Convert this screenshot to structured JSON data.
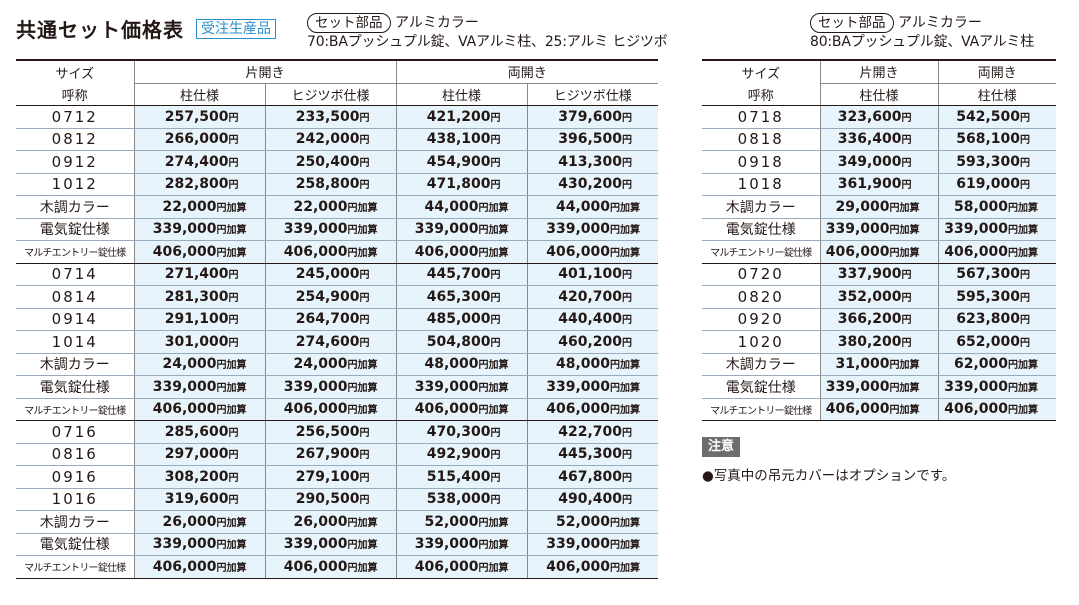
{
  "title": "共通セット価格表",
  "badge": "受注生産品",
  "left_note": {
    "pill": "セット部品",
    "line1": "アルミカラー",
    "line2": "70:BAプッシュプル錠、VAアルミ柱、25:アルミ ヒジツボ"
  },
  "right_note": {
    "pill": "セット部品",
    "line1": "アルミカラー",
    "line2": "80:BAプッシュプル錠、VAアルミ柱"
  },
  "table_left": {
    "h_size1": "サイズ",
    "h_size2": "呼称",
    "g1": "片開き",
    "g2": "両開き",
    "c1": "柱仕様",
    "c2": "ヒジツボ仕様",
    "c3": "柱仕様",
    "c4": "ヒジツボ仕様",
    "rows": [
      {
        "label": "0712",
        "v": [
          "257,500",
          "233,500",
          "421,200",
          "379,600"
        ]
      },
      {
        "label": "0812",
        "v": [
          "266,000",
          "242,000",
          "438,100",
          "396,500"
        ]
      },
      {
        "label": "0912",
        "v": [
          "274,400",
          "250,400",
          "454,900",
          "413,300"
        ]
      },
      {
        "label": "1012",
        "v": [
          "282,800",
          "258,800",
          "471,800",
          "430,200"
        ]
      },
      {
        "label": "木調カラー",
        "v": [
          "22,000",
          "22,000",
          "44,000",
          "44,000"
        ]
      },
      {
        "label": "電気錠仕様",
        "v": [
          "339,000",
          "339,000",
          "339,000",
          "339,000"
        ]
      },
      {
        "label": "マルチエントリー錠仕様",
        "v": [
          "406,000",
          "406,000",
          "406,000",
          "406,000"
        ]
      },
      {
        "label": "0714",
        "v": [
          "271,400",
          "245,000",
          "445,700",
          "401,100"
        ]
      },
      {
        "label": "0814",
        "v": [
          "281,300",
          "254,900",
          "465,300",
          "420,700"
        ]
      },
      {
        "label": "0914",
        "v": [
          "291,100",
          "264,700",
          "485,000",
          "440,400"
        ]
      },
      {
        "label": "1014",
        "v": [
          "301,000",
          "274,600",
          "504,800",
          "460,200"
        ]
      },
      {
        "label": "木調カラー",
        "v": [
          "24,000",
          "24,000",
          "48,000",
          "48,000"
        ]
      },
      {
        "label": "電気錠仕様",
        "v": [
          "339,000",
          "339,000",
          "339,000",
          "339,000"
        ]
      },
      {
        "label": "マルチエントリー錠仕様",
        "v": [
          "406,000",
          "406,000",
          "406,000",
          "406,000"
        ]
      },
      {
        "label": "0716",
        "v": [
          "285,600",
          "256,500",
          "470,300",
          "422,700"
        ]
      },
      {
        "label": "0816",
        "v": [
          "297,000",
          "267,900",
          "492,900",
          "445,300"
        ]
      },
      {
        "label": "0916",
        "v": [
          "308,200",
          "279,100",
          "515,400",
          "467,800"
        ]
      },
      {
        "label": "1016",
        "v": [
          "319,600",
          "290,500",
          "538,000",
          "490,400"
        ]
      },
      {
        "label": "木調カラー",
        "v": [
          "26,000",
          "26,000",
          "52,000",
          "52,000"
        ]
      },
      {
        "label": "電気錠仕様",
        "v": [
          "339,000",
          "339,000",
          "339,000",
          "339,000"
        ]
      },
      {
        "label": "マルチエントリー錠仕様",
        "v": [
          "406,000",
          "406,000",
          "406,000",
          "406,000"
        ]
      }
    ]
  },
  "table_right": {
    "h_size1": "サイズ",
    "h_size2": "呼称",
    "g1": "片開き",
    "g2": "両開き",
    "c1": "柱仕様",
    "c2": "柱仕様",
    "rows": [
      {
        "label": "0718",
        "v": [
          "323,600",
          "542,500"
        ]
      },
      {
        "label": "0818",
        "v": [
          "336,400",
          "568,100"
        ]
      },
      {
        "label": "0918",
        "v": [
          "349,000",
          "593,300"
        ]
      },
      {
        "label": "1018",
        "v": [
          "361,900",
          "619,000"
        ]
      },
      {
        "label": "木調カラー",
        "v": [
          "29,000",
          "58,000"
        ]
      },
      {
        "label": "電気錠仕様",
        "v": [
          "339,000",
          "339,000"
        ]
      },
      {
        "label": "マルチエントリー錠仕様",
        "v": [
          "406,000",
          "406,000"
        ]
      },
      {
        "label": "0720",
        "v": [
          "337,900",
          "567,300"
        ]
      },
      {
        "label": "0820",
        "v": [
          "352,000",
          "595,300"
        ]
      },
      {
        "label": "0920",
        "v": [
          "366,200",
          "623,800"
        ]
      },
      {
        "label": "1020",
        "v": [
          "380,200",
          "652,000"
        ]
      },
      {
        "label": "木調カラー",
        "v": [
          "31,000",
          "62,000"
        ]
      },
      {
        "label": "電気錠仕様",
        "v": [
          "339,000",
          "339,000"
        ]
      },
      {
        "label": "マルチエントリー錠仕様",
        "v": [
          "406,000",
          "406,000"
        ]
      }
    ]
  },
  "yen": "円",
  "add_suffix": "円加算",
  "caution_label": "注意",
  "caution_text": "●写真中の吊元カバーはオプションです。"
}
